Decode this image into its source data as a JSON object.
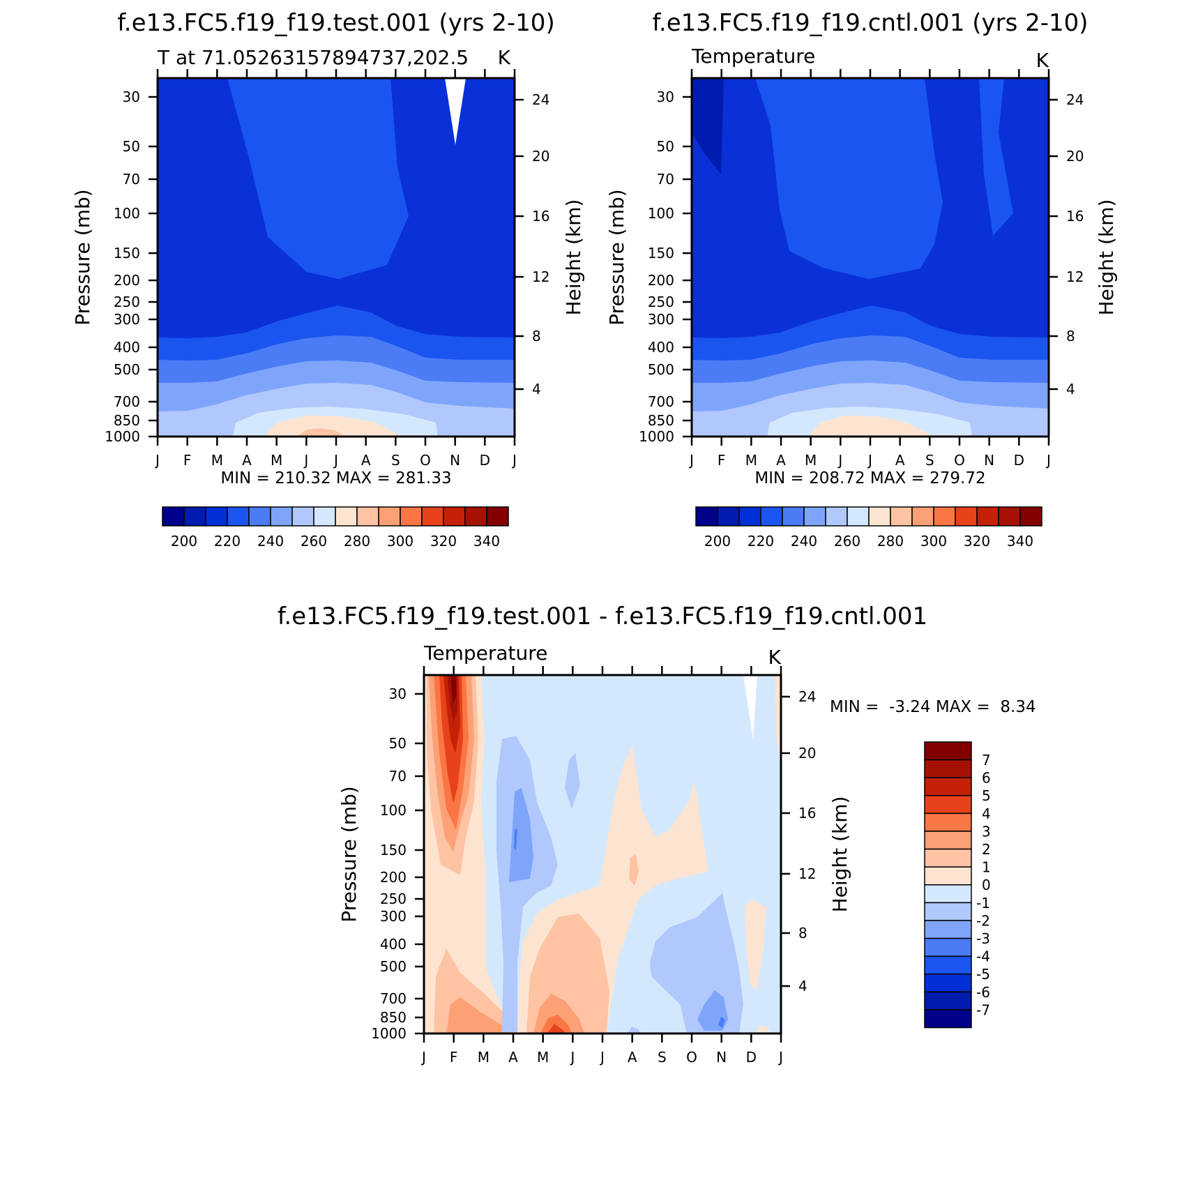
{
  "palettes": {
    "abs": [
      "#00008b",
      "#001cad",
      "#0030d6",
      "#1a55f0",
      "#4c7cf5",
      "#7fa5fb",
      "#b0c8fc",
      "#d4e8fd",
      "#fde4d0",
      "#fdc3a3",
      "#fca075",
      "#fa7745",
      "#e8421a",
      "#c42106",
      "#a51205",
      "#820000"
    ],
    "diff": [
      "#00008b",
      "#001cad",
      "#0030d6",
      "#1a55f0",
      "#4c7cf5",
      "#7fa5fb",
      "#b0c8fc",
      "#d4e8fd",
      "#fde4d0",
      "#fdc3a3",
      "#fca075",
      "#fa7745",
      "#e8421a",
      "#c42106",
      "#a51205",
      "#820000"
    ]
  },
  "axes": {
    "months": [
      "J",
      "F",
      "M",
      "A",
      "M",
      "J",
      "J",
      "A",
      "S",
      "O",
      "N",
      "D",
      "J"
    ],
    "pressure_ticks": [
      "30",
      "50",
      "70",
      "100",
      "150",
      "200",
      "250",
      "300",
      "400",
      "500",
      "700",
      "850",
      "1000"
    ],
    "height_ticks": [
      "24",
      "20",
      "16",
      "12",
      "8",
      "4"
    ],
    "ylabel_left": "Pressure (mb)",
    "ylabel_right": "Height (km)"
  },
  "panels": {
    "test": {
      "title": "f.e13.FC5.f19_f19.test.001 (yrs 2-10)",
      "subtitle_left": "T at 71.05263157894737,202.5",
      "subtitle_right": "K",
      "stats": "MIN = 210.32 MAX = 281.33"
    },
    "cntl": {
      "title": "f.e13.FC5.f19_f19.cntl.001 (yrs 2-10)",
      "subtitle_left": "Temperature",
      "subtitle_right": "K",
      "stats": "MIN = 208.72 MAX = 279.72"
    },
    "diff": {
      "title": "f.e13.FC5.f19_f19.test.001 - f.e13.FC5.f19_f19.cntl.001",
      "subtitle_left": "Temperature",
      "subtitle_right": "K",
      "stats": "MIN =  -3.24 MAX =  8.34"
    }
  },
  "colorbars": {
    "abs_labels": [
      "200",
      "220",
      "240",
      "260",
      "280",
      "300",
      "320",
      "340"
    ],
    "diff_labels": [
      "7",
      "6",
      "5",
      "4",
      "3",
      "2",
      "1",
      "0",
      "-1",
      "-2",
      "-3",
      "-4",
      "-5",
      "-6",
      "-7"
    ]
  },
  "chart_data": [
    {
      "type": "heatmap",
      "title": "f.e13.FC5.f19_f19.test.001 (yrs 2-10)",
      "subtitle": "T at 71.05263157894737,202.5",
      "units": "K",
      "x": [
        "J",
        "F",
        "M",
        "A",
        "M",
        "J",
        "J",
        "A",
        "S",
        "O",
        "N",
        "D",
        "J"
      ],
      "y_pressure_mb": [
        30,
        50,
        70,
        100,
        150,
        200,
        250,
        300,
        400,
        500,
        700,
        850,
        1000
      ],
      "y_height_km": [
        24,
        20,
        16,
        12,
        8,
        4
      ],
      "ylabel": "Pressure (mb)",
      "ylabel_right": "Height (km)",
      "min": 210.32,
      "max": 281.33,
      "contour_levels": [
        200,
        220,
        240,
        260,
        280,
        300,
        320,
        340
      ]
    },
    {
      "type": "heatmap",
      "title": "f.e13.FC5.f19_f19.cntl.001 (yrs 2-10)",
      "subtitle": "Temperature",
      "units": "K",
      "x": [
        "J",
        "F",
        "M",
        "A",
        "M",
        "J",
        "J",
        "A",
        "S",
        "O",
        "N",
        "D",
        "J"
      ],
      "y_pressure_mb": [
        30,
        50,
        70,
        100,
        150,
        200,
        250,
        300,
        400,
        500,
        700,
        850,
        1000
      ],
      "y_height_km": [
        24,
        20,
        16,
        12,
        8,
        4
      ],
      "ylabel": "Pressure (mb)",
      "ylabel_right": "Height (km)",
      "min": 208.72,
      "max": 279.72,
      "contour_levels": [
        200,
        220,
        240,
        260,
        280,
        300,
        320,
        340
      ]
    },
    {
      "type": "heatmap",
      "title": "f.e13.FC5.f19_f19.test.001 - f.e13.FC5.f19_f19.cntl.001",
      "subtitle": "Temperature",
      "units": "K",
      "x": [
        "J",
        "F",
        "M",
        "A",
        "M",
        "J",
        "J",
        "A",
        "S",
        "O",
        "N",
        "D",
        "J"
      ],
      "y_pressure_mb": [
        30,
        50,
        70,
        100,
        150,
        200,
        250,
        300,
        400,
        500,
        700,
        850,
        1000
      ],
      "y_height_km": [
        24,
        20,
        16,
        12,
        8,
        4
      ],
      "ylabel": "Pressure (mb)",
      "ylabel_right": "Height (km)",
      "min": -3.24,
      "max": 8.34,
      "contour_levels": [
        -7,
        -6,
        -5,
        -4,
        -3,
        -2,
        -1,
        0,
        1,
        2,
        3,
        4,
        5,
        6,
        7
      ]
    }
  ]
}
